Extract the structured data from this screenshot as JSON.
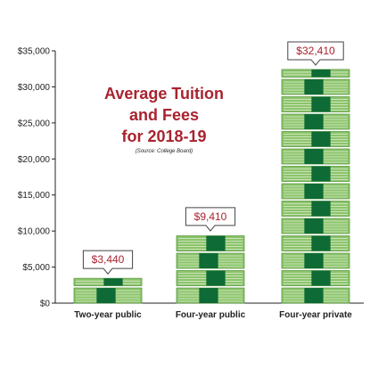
{
  "title_lines": [
    "Average Tuition",
    "and Fees",
    "for 2018-19"
  ],
  "source_note": "(Source: College Board)",
  "colors": {
    "title": "#a8232f",
    "callout_text": "#a8232f",
    "bill_light": "#8cc46b",
    "bill_edge": "#5c9a43",
    "band": "#0e6b35",
    "axis": "#222222"
  },
  "chart_data": {
    "type": "bar",
    "title": "Average Tuition and Fees for 2018-19",
    "subtitle": "(Source: College Board)",
    "categories": [
      "Two-year public",
      "Four-year public",
      "Four-year private"
    ],
    "values": [
      3440,
      9410,
      32410
    ],
    "value_labels": [
      "$3,440",
      "$9,410",
      "$32,410"
    ],
    "ylim": [
      0,
      35000
    ],
    "yticks": [
      0,
      5000,
      10000,
      15000,
      20000,
      25000,
      30000,
      35000
    ],
    "ytick_labels": [
      "$0",
      "$5,000",
      "$10,000",
      "$15,000",
      "$20,000",
      "$25,000",
      "$30,000",
      "$35,000"
    ],
    "grid": false,
    "legend": "none"
  }
}
